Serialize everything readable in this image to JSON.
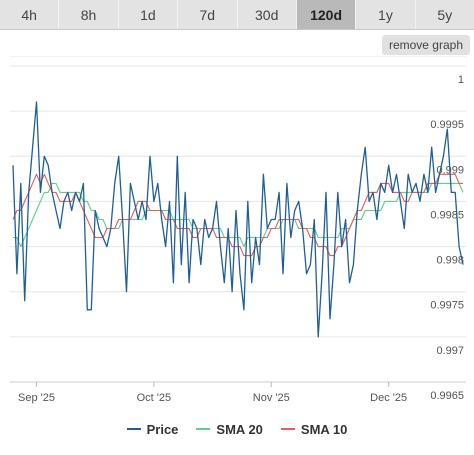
{
  "tabs": [
    {
      "label": "4h",
      "active": false
    },
    {
      "label": "8h",
      "active": false
    },
    {
      "label": "1d",
      "active": false
    },
    {
      "label": "7d",
      "active": false
    },
    {
      "label": "30d",
      "active": false
    },
    {
      "label": "120d",
      "active": true
    },
    {
      "label": "1y",
      "active": false
    },
    {
      "label": "5y",
      "active": false
    }
  ],
  "remove_graph_label": "remove graph",
  "colors": {
    "price": "#1f5f96",
    "sma20": "#5fd08a",
    "sma10": "#e85c5c",
    "grid": "#e6e6e6",
    "axis_text": "#555555"
  },
  "chart_data": {
    "type": "line",
    "ylim": [
      0.9965,
      1.0
    ],
    "y_ticks": [
      "1",
      "0.9995",
      "0.999",
      "0.9985",
      "0.998",
      "0.9975",
      "0.997",
      "0.9965"
    ],
    "y_tick_values": [
      1.0,
      0.9995,
      0.999,
      0.9985,
      0.998,
      0.9975,
      0.997,
      0.9965
    ],
    "x_ticks": [
      {
        "label": "Sep '25",
        "index": 6
      },
      {
        "label": "Oct '25",
        "index": 36
      },
      {
        "label": "Nov '25",
        "index": 66
      },
      {
        "label": "Dec '25",
        "index": 96
      }
    ],
    "series": [
      {
        "name": "Price",
        "color": "#1f5f96",
        "values": [
          0.9989,
          0.9977,
          0.9987,
          0.9974,
          0.9986,
          0.9991,
          0.9996,
          0.9986,
          0.999,
          0.9989,
          0.9986,
          0.9984,
          0.9982,
          0.9985,
          0.9986,
          0.9984,
          0.9986,
          0.9985,
          0.9987,
          0.9973,
          0.9973,
          0.9984,
          0.9982,
          0.9981,
          0.998,
          0.9982,
          0.9987,
          0.999,
          0.9983,
          0.9975,
          0.9987,
          0.9985,
          0.9983,
          0.9985,
          0.9983,
          0.999,
          0.9985,
          0.9987,
          0.9983,
          0.998,
          0.9985,
          0.9976,
          0.999,
          0.9978,
          0.9986,
          0.9976,
          0.9983,
          0.9982,
          0.9978,
          0.9983,
          0.9981,
          0.9982,
          0.9985,
          0.998,
          0.9976,
          0.9982,
          0.9975,
          0.9984,
          0.9977,
          0.9973,
          0.9985,
          0.9976,
          0.9981,
          0.9978,
          0.9988,
          0.9982,
          0.9983,
          0.9983,
          0.9986,
          0.9977,
          0.9987,
          0.9981,
          0.9984,
          0.9985,
          0.9982,
          0.9977,
          0.9978,
          0.9983,
          0.997,
          0.9977,
          0.9986,
          0.9972,
          0.9978,
          0.9986,
          0.998,
          0.9983,
          0.9976,
          0.9978,
          0.9984,
          0.9988,
          0.9991,
          0.9985,
          0.9986,
          0.9983,
          0.9987,
          0.9986,
          0.9989,
          0.9986,
          0.9988,
          0.9985,
          0.9982,
          0.9988,
          0.9986,
          0.9987,
          0.9985,
          0.9988,
          0.9986,
          0.9991,
          0.9986,
          0.9988,
          0.999,
          0.9993,
          0.9986,
          0.9986,
          0.998,
          0.9978
        ]
      },
      {
        "name": "SMA 20",
        "color": "#5fd08a",
        "values": [
          0.9981,
          0.9981,
          0.998,
          0.9981,
          0.9982,
          0.9983,
          0.9984,
          0.9985,
          0.9986,
          0.9986,
          0.9987,
          0.9987,
          0.9986,
          0.9986,
          0.9986,
          0.9986,
          0.9986,
          0.9986,
          0.9985,
          0.9985,
          0.9984,
          0.9984,
          0.9983,
          0.9983,
          0.9982,
          0.9982,
          0.9982,
          0.9982,
          0.9983,
          0.9983,
          0.9983,
          0.9983,
          0.9983,
          0.9983,
          0.9984,
          0.9984,
          0.9984,
          0.9984,
          0.9984,
          0.9984,
          0.9984,
          0.9983,
          0.9983,
          0.9983,
          0.9983,
          0.9983,
          0.9982,
          0.9982,
          0.9982,
          0.9982,
          0.9982,
          0.9982,
          0.9982,
          0.9982,
          0.9981,
          0.9981,
          0.9981,
          0.9981,
          0.9981,
          0.998,
          0.9981,
          0.9981,
          0.9981,
          0.9981,
          0.9981,
          0.9982,
          0.9982,
          0.9982,
          0.9982,
          0.9983,
          0.9983,
          0.9983,
          0.9983,
          0.9982,
          0.9982,
          0.9982,
          0.9982,
          0.9982,
          0.9981,
          0.9981,
          0.9981,
          0.9981,
          0.9981,
          0.9981,
          0.9982,
          0.9982,
          0.9982,
          0.9983,
          0.9983,
          0.9983,
          0.9984,
          0.9984,
          0.9984,
          0.9984,
          0.9984,
          0.9985,
          0.9985,
          0.9985,
          0.9985,
          0.9986,
          0.9986,
          0.9986,
          0.9986,
          0.9986,
          0.9986,
          0.9986,
          0.9986,
          0.9987,
          0.9987,
          0.9987,
          0.9987,
          0.9987,
          0.9987,
          0.9987,
          0.9987,
          0.9986
        ]
      },
      {
        "name": "SMA 10",
        "color": "#e85c5c",
        "values": [
          0.9983,
          0.9984,
          0.9984,
          0.9985,
          0.9986,
          0.9987,
          0.9988,
          0.9987,
          0.9988,
          0.9987,
          0.9986,
          0.9986,
          0.9985,
          0.9985,
          0.9985,
          0.9985,
          0.9986,
          0.9985,
          0.9984,
          0.9983,
          0.9982,
          0.9981,
          0.9981,
          0.9981,
          0.9982,
          0.9982,
          0.9982,
          0.9983,
          0.9983,
          0.9983,
          0.9983,
          0.9984,
          0.9985,
          0.9985,
          0.9985,
          0.9984,
          0.9984,
          0.9984,
          0.9984,
          0.9983,
          0.9983,
          0.9983,
          0.9982,
          0.9982,
          0.9982,
          0.9982,
          0.9981,
          0.9981,
          0.9982,
          0.9982,
          0.9982,
          0.9982,
          0.9981,
          0.9981,
          0.9981,
          0.9981,
          0.998,
          0.998,
          0.998,
          0.9979,
          0.9979,
          0.9979,
          0.998,
          0.998,
          0.9981,
          0.9981,
          0.9982,
          0.9982,
          0.9983,
          0.9983,
          0.9983,
          0.9983,
          0.9983,
          0.9983,
          0.9982,
          0.9982,
          0.9981,
          0.9981,
          0.998,
          0.998,
          0.998,
          0.9979,
          0.9979,
          0.998,
          0.998,
          0.9981,
          0.9982,
          0.9983,
          0.9984,
          0.9984,
          0.9985,
          0.9986,
          0.9986,
          0.9986,
          0.9987,
          0.9987,
          0.9987,
          0.9986,
          0.9986,
          0.9986,
          0.9985,
          0.9985,
          0.9986,
          0.9986,
          0.9986,
          0.9986,
          0.9987,
          0.9987,
          0.9987,
          0.9988,
          0.9988,
          0.9988,
          0.9988,
          0.9988,
          0.9987,
          0.9987
        ]
      }
    ],
    "legend_position": "bottom",
    "grid": true
  }
}
